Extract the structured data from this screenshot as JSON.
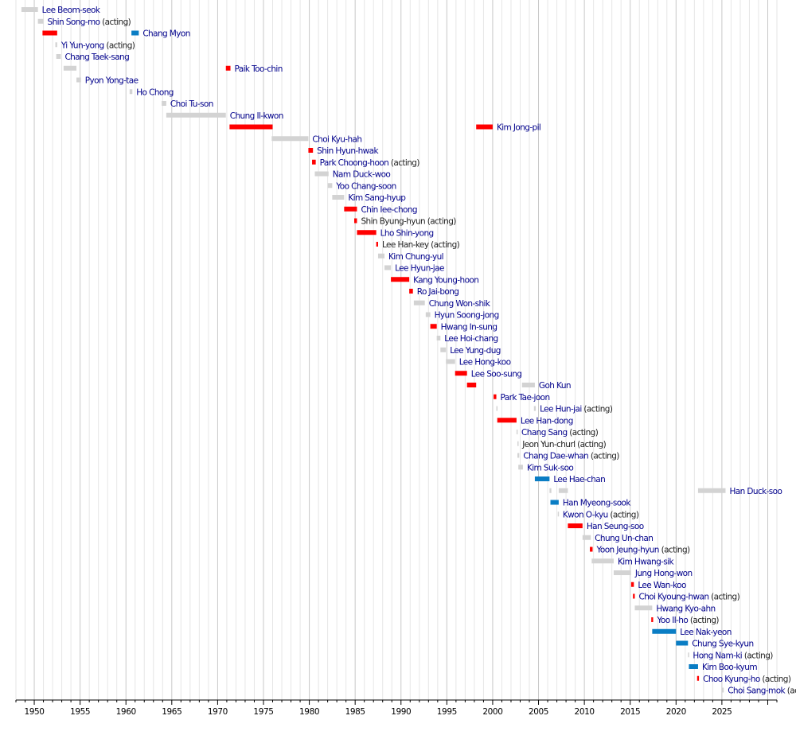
{
  "chart_data": {
    "type": "timeline",
    "xlim": [
      1948,
      2031
    ],
    "x_ticks": [
      1950,
      1955,
      1960,
      1965,
      1970,
      1975,
      1980,
      1985,
      1990,
      1995,
      2000,
      2005,
      2010,
      2015,
      2020,
      2025
    ],
    "grid": true,
    "colors": {
      "grey": "#d3d3d3",
      "red": "#ff0000",
      "blue": "#0a7dc4",
      "name_link": "#00008b",
      "name_plain": "#222222",
      "acting": "#222222"
    },
    "rows": [
      {
        "name": "Lee Beom-seok",
        "acting": false,
        "link": true,
        "terms": [
          {
            "start": 1948.6,
            "end": 1950.4,
            "color": "grey"
          }
        ]
      },
      {
        "name": "Shin Song-mo",
        "acting": true,
        "link": true,
        "terms": [
          {
            "start": 1950.4,
            "end": 1951.0,
            "color": "grey"
          }
        ]
      },
      {
        "name": "Chang Myon",
        "acting": false,
        "link": true,
        "terms": [
          {
            "start": 1950.9,
            "end": 1952.5,
            "color": "red"
          },
          {
            "start": 1960.6,
            "end": 1961.4,
            "color": "blue"
          }
        ]
      },
      {
        "name": "Yi Yun-yong",
        "acting": true,
        "link": true,
        "terms": [
          {
            "start": 1952.3,
            "end": 1952.5,
            "color": "grey"
          }
        ]
      },
      {
        "name": "Chang Taek-sang",
        "acting": false,
        "link": true,
        "terms": [
          {
            "start": 1952.4,
            "end": 1952.9,
            "color": "grey"
          }
        ]
      },
      {
        "name": "Paik Too-chin",
        "acting": false,
        "link": true,
        "terms": [
          {
            "start": 1953.2,
            "end": 1954.6,
            "color": "grey"
          },
          {
            "start": 1970.9,
            "end": 1971.4,
            "color": "red"
          }
        ]
      },
      {
        "name": "Pyon Yong-tae",
        "acting": false,
        "link": true,
        "terms": [
          {
            "start": 1954.6,
            "end": 1955.1,
            "color": "grey"
          }
        ]
      },
      {
        "name": "Ho Chong",
        "acting": false,
        "link": true,
        "terms": [
          {
            "start": 1960.4,
            "end": 1960.7,
            "color": "grey"
          }
        ]
      },
      {
        "name": "Choi Tu-son",
        "acting": false,
        "link": true,
        "terms": [
          {
            "start": 1963.9,
            "end": 1964.4,
            "color": "grey"
          }
        ]
      },
      {
        "name": "Chung Il-kwon",
        "acting": false,
        "link": true,
        "terms": [
          {
            "start": 1964.4,
            "end": 1970.9,
            "color": "grey"
          }
        ]
      },
      {
        "name": "Kim Jong-pil",
        "acting": false,
        "link": true,
        "terms": [
          {
            "start": 1971.3,
            "end": 1976.0,
            "color": "red"
          },
          {
            "start": 1998.2,
            "end": 2000.0,
            "color": "red"
          }
        ]
      },
      {
        "name": "Choi Kyu-hah",
        "acting": false,
        "link": true,
        "terms": [
          {
            "start": 1975.9,
            "end": 1979.9,
            "color": "grey"
          }
        ]
      },
      {
        "name": "Shin Hyun-hwak",
        "acting": false,
        "link": true,
        "terms": [
          {
            "start": 1979.9,
            "end": 1980.4,
            "color": "red"
          }
        ]
      },
      {
        "name": "Park Choong-hoon",
        "acting": true,
        "link": true,
        "terms": [
          {
            "start": 1980.3,
            "end": 1980.7,
            "color": "red"
          }
        ]
      },
      {
        "name": "Nam Duck-woo",
        "acting": false,
        "link": true,
        "terms": [
          {
            "start": 1980.6,
            "end": 1982.1,
            "color": "grey"
          }
        ]
      },
      {
        "name": "Yoo Chang-soon",
        "acting": false,
        "link": true,
        "terms": [
          {
            "start": 1982.0,
            "end": 1982.5,
            "color": "grey"
          }
        ]
      },
      {
        "name": "Kim Sang-hyup",
        "acting": false,
        "link": true,
        "terms": [
          {
            "start": 1982.5,
            "end": 1983.8,
            "color": "grey"
          }
        ]
      },
      {
        "name": "Chin Iee-chong",
        "acting": false,
        "link": true,
        "terms": [
          {
            "start": 1983.8,
            "end": 1985.2,
            "color": "red"
          }
        ]
      },
      {
        "name": "Shin Byung-hyun",
        "acting": true,
        "link": false,
        "terms": [
          {
            "start": 1984.9,
            "end": 1985.2,
            "color": "red"
          }
        ]
      },
      {
        "name": "Lho Shin-yong",
        "acting": false,
        "link": true,
        "terms": [
          {
            "start": 1985.2,
            "end": 1987.3,
            "color": "red"
          }
        ]
      },
      {
        "name": "Lee Han-key",
        "acting": true,
        "link": false,
        "terms": [
          {
            "start": 1987.3,
            "end": 1987.5,
            "color": "red"
          }
        ]
      },
      {
        "name": "Kim Chung-yul",
        "acting": false,
        "link": true,
        "terms": [
          {
            "start": 1987.5,
            "end": 1988.2,
            "color": "grey"
          }
        ]
      },
      {
        "name": "Lee Hyun-jae",
        "acting": false,
        "link": true,
        "terms": [
          {
            "start": 1988.2,
            "end": 1988.9,
            "color": "grey"
          }
        ]
      },
      {
        "name": "Kang Young-hoon",
        "acting": false,
        "link": true,
        "terms": [
          {
            "start": 1988.9,
            "end": 1990.9,
            "color": "red"
          }
        ]
      },
      {
        "name": "Ro Jai-bong",
        "acting": false,
        "link": true,
        "terms": [
          {
            "start": 1990.9,
            "end": 1991.3,
            "color": "red"
          }
        ]
      },
      {
        "name": "Chung Won-shik",
        "acting": false,
        "link": true,
        "terms": [
          {
            "start": 1991.4,
            "end": 1992.6,
            "color": "grey"
          }
        ]
      },
      {
        "name": "Hyun Soong-jong",
        "acting": false,
        "link": true,
        "terms": [
          {
            "start": 1992.7,
            "end": 1993.2,
            "color": "grey"
          }
        ]
      },
      {
        "name": "Hwang In-sung",
        "acting": false,
        "link": true,
        "terms": [
          {
            "start": 1993.2,
            "end": 1993.9,
            "color": "red"
          }
        ]
      },
      {
        "name": "Lee Hoi-chang",
        "acting": false,
        "link": true,
        "terms": [
          {
            "start": 1993.9,
            "end": 1994.3,
            "color": "grey"
          }
        ]
      },
      {
        "name": "Lee Yung-dug",
        "acting": false,
        "link": true,
        "terms": [
          {
            "start": 1994.3,
            "end": 1994.9,
            "color": "grey"
          }
        ]
      },
      {
        "name": "Lee Hong-koo",
        "acting": false,
        "link": true,
        "terms": [
          {
            "start": 1994.9,
            "end": 1995.9,
            "color": "grey"
          }
        ]
      },
      {
        "name": "Lee Soo-sung",
        "acting": false,
        "link": true,
        "terms": [
          {
            "start": 1995.9,
            "end": 1997.2,
            "color": "red"
          }
        ]
      },
      {
        "name": "Goh Kun",
        "acting": false,
        "link": true,
        "terms": [
          {
            "start": 1997.2,
            "end": 1998.2,
            "color": "red"
          },
          {
            "start": 2003.2,
            "end": 2004.6,
            "color": "grey"
          }
        ]
      },
      {
        "name": "Park Tae-joon",
        "acting": false,
        "link": true,
        "terms": [
          {
            "start": 2000.1,
            "end": 2000.4,
            "color": "red"
          }
        ]
      },
      {
        "name": "Lee Hun-jai",
        "acting": true,
        "link": true,
        "terms": [
          {
            "start": 2000.4,
            "end": 2000.5,
            "color": "grey"
          },
          {
            "start": 2004.5,
            "end": 2004.7,
            "color": "grey"
          }
        ]
      },
      {
        "name": "Lee Han-dong",
        "acting": false,
        "link": true,
        "terms": [
          {
            "start": 2000.5,
            "end": 2002.6,
            "color": "red"
          }
        ]
      },
      {
        "name": "Chang Sang",
        "acting": true,
        "link": true,
        "terms": [
          {
            "start": 2002.6,
            "end": 2002.7,
            "color": "grey"
          }
        ]
      },
      {
        "name": "Jeon Yun-churl",
        "acting": true,
        "link": false,
        "terms": [
          {
            "start": 2002.7,
            "end": 2002.8,
            "color": "grey"
          }
        ]
      },
      {
        "name": "Chang Dae-whan",
        "acting": true,
        "link": true,
        "terms": [
          {
            "start": 2002.7,
            "end": 2002.9,
            "color": "grey"
          }
        ]
      },
      {
        "name": "Kim Suk-soo",
        "acting": false,
        "link": true,
        "terms": [
          {
            "start": 2002.8,
            "end": 2003.3,
            "color": "grey"
          }
        ]
      },
      {
        "name": "Lee Hae-chan",
        "acting": false,
        "link": true,
        "terms": [
          {
            "start": 2004.6,
            "end": 2006.2,
            "color": "blue"
          }
        ]
      },
      {
        "name": "Han Duck-soo",
        "acting": false,
        "link": true,
        "terms": [
          {
            "start": 2006.2,
            "end": 2006.4,
            "color": "grey"
          },
          {
            "start": 2007.2,
            "end": 2008.2,
            "color": "grey"
          },
          {
            "start": 2022.4,
            "end": 2025.0,
            "color": "grey"
          },
          {
            "start": 2025.0,
            "end": 2025.4,
            "color": "grey"
          }
        ]
      },
      {
        "name": "Han Myeong-sook",
        "acting": false,
        "link": true,
        "terms": [
          {
            "start": 2006.3,
            "end": 2007.2,
            "color": "blue"
          }
        ]
      },
      {
        "name": "Kwon O-kyu",
        "acting": true,
        "link": true,
        "terms": [
          {
            "start": 2007.1,
            "end": 2007.2,
            "color": "grey"
          }
        ]
      },
      {
        "name": "Han Seung-soo",
        "acting": false,
        "link": true,
        "terms": [
          {
            "start": 2008.2,
            "end": 2009.8,
            "color": "red"
          }
        ]
      },
      {
        "name": "Chung Un-chan",
        "acting": false,
        "link": true,
        "terms": [
          {
            "start": 2009.8,
            "end": 2010.7,
            "color": "grey"
          }
        ]
      },
      {
        "name": "Yoon Jeung-hyun",
        "acting": true,
        "link": true,
        "terms": [
          {
            "start": 2010.6,
            "end": 2010.9,
            "color": "red"
          }
        ]
      },
      {
        "name": "Kim Hwang-sik",
        "acting": false,
        "link": true,
        "terms": [
          {
            "start": 2010.8,
            "end": 2013.2,
            "color": "grey"
          }
        ]
      },
      {
        "name": "Jung Hong-won",
        "acting": false,
        "link": true,
        "terms": [
          {
            "start": 2013.2,
            "end": 2015.1,
            "color": "grey"
          }
        ]
      },
      {
        "name": "Lee Wan-koo",
        "acting": false,
        "link": true,
        "terms": [
          {
            "start": 2015.1,
            "end": 2015.4,
            "color": "red"
          }
        ]
      },
      {
        "name": "Choi Kyoung-hwan",
        "acting": true,
        "link": true,
        "terms": [
          {
            "start": 2015.3,
            "end": 2015.5,
            "color": "red"
          }
        ]
      },
      {
        "name": "Hwang Kyo-ahn",
        "acting": false,
        "link": true,
        "terms": [
          {
            "start": 2015.5,
            "end": 2017.4,
            "color": "grey"
          }
        ]
      },
      {
        "name": "Yoo Il-ho",
        "acting": true,
        "link": true,
        "terms": [
          {
            "start": 2017.3,
            "end": 2017.5,
            "color": "red"
          }
        ]
      },
      {
        "name": "Lee Nak-yeon",
        "acting": false,
        "link": true,
        "terms": [
          {
            "start": 2017.4,
            "end": 2020.0,
            "color": "blue"
          }
        ]
      },
      {
        "name": "Chung Sye-kyun",
        "acting": false,
        "link": true,
        "terms": [
          {
            "start": 2020.0,
            "end": 2021.3,
            "color": "blue"
          }
        ]
      },
      {
        "name": "Hong Nam-ki",
        "acting": true,
        "link": true,
        "terms": [
          {
            "start": 2021.3,
            "end": 2021.4,
            "color": "grey"
          }
        ]
      },
      {
        "name": "Kim Boo-kyum",
        "acting": false,
        "link": true,
        "terms": [
          {
            "start": 2021.4,
            "end": 2022.4,
            "color": "blue"
          }
        ]
      },
      {
        "name": "Choo Kyung-ho",
        "acting": true,
        "link": true,
        "terms": [
          {
            "start": 2022.3,
            "end": 2022.5,
            "color": "red"
          }
        ]
      },
      {
        "name": "Choi Sang-mok",
        "acting": true,
        "link": true,
        "terms": [
          {
            "start": 2025.0,
            "end": 2025.2,
            "color": "grey"
          }
        ]
      }
    ]
  }
}
